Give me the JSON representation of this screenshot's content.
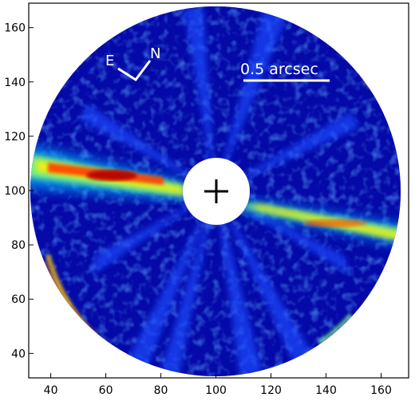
{
  "image": {
    "description_tags": [
      "disk",
      "coronagraph",
      "false-color-map"
    ],
    "colormap": "jet",
    "background_color": "#00007f",
    "x_ticks": [
      "40",
      "60",
      "80",
      "100",
      "120",
      "140",
      "160"
    ],
    "y_ticks": [
      "160",
      "140",
      "120",
      "100",
      "80",
      "60",
      "40"
    ],
    "x_range": [
      32,
      170
    ],
    "y_range": [
      31,
      169
    ],
    "annotations": {
      "compass_east": "E",
      "compass_north": "N",
      "scale_bar_label": "0.5 arcsec"
    },
    "colors": {
      "frame": "#000000",
      "mask": "#ffffff",
      "center_marker": "#000000",
      "annotation": "#ffffff"
    }
  }
}
